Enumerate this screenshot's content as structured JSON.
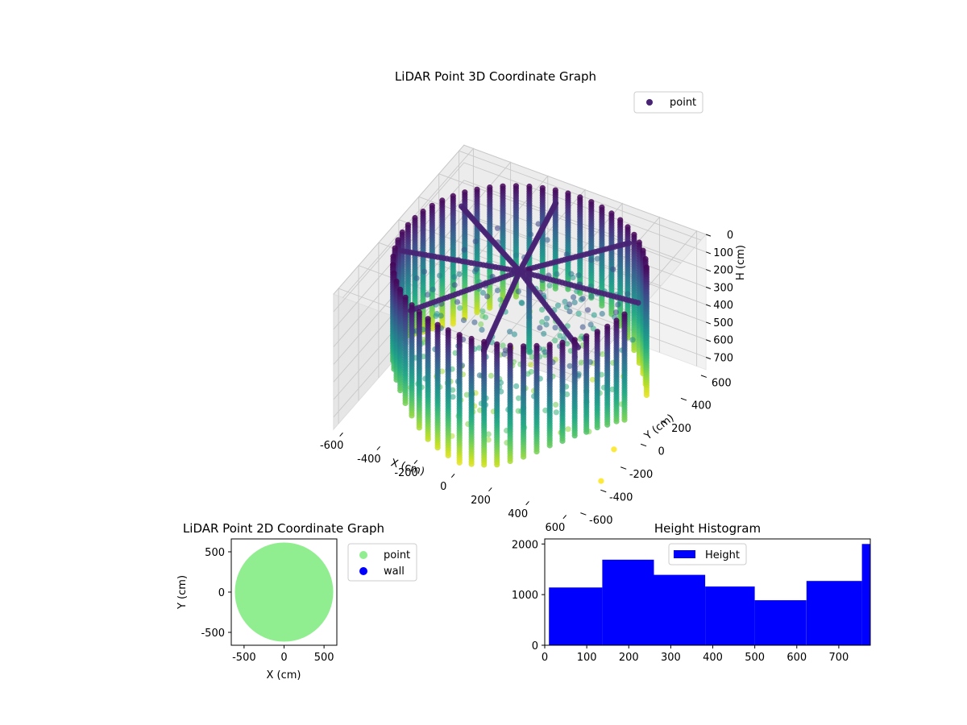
{
  "chart_data": [
    {
      "type": "scatter",
      "projection": "3d",
      "title": "LiDAR Point 3D Coordinate Graph",
      "xlabel": "X (cm)",
      "ylabel": "Y (cm)",
      "zlabel": "H (cm)",
      "xticks": [
        -600,
        -400,
        -200,
        0,
        200,
        400,
        600
      ],
      "yticks": [
        -600,
        -400,
        -200,
        0,
        200,
        400,
        600
      ],
      "zticks": [
        0,
        100,
        200,
        300,
        400,
        500,
        600,
        700
      ],
      "xlim": [
        -650,
        650
      ],
      "ylim": [
        -650,
        650
      ],
      "zlim": [
        0,
        770
      ],
      "zinverted": true,
      "colormap": "viridis",
      "grid": true,
      "legend": {
        "position": "top-right",
        "entries": [
          {
            "label": "point",
            "color": "#472c7a"
          }
        ]
      },
      "points_description": "cylindrical wall of radius ~600 cm spanning heights 0-770 cm, with an interior structure around the center",
      "wall_radius": 600,
      "n_columns": 60,
      "outliers": [
        {
          "x": 560,
          "y": -100,
          "h": 770
        },
        {
          "x": 620,
          "y": -340,
          "h": 770
        }
      ]
    },
    {
      "type": "scatter",
      "title": "LiDAR Point 2D Coordinate Graph",
      "xlabel": "X (cm)",
      "ylabel": "Y (cm)",
      "xticks": [
        -500,
        0,
        500
      ],
      "yticks": [
        -500,
        0,
        500
      ],
      "xlim": [
        -660,
        660
      ],
      "ylim": [
        -660,
        660
      ],
      "series": [
        {
          "name": "point",
          "color": "#90ee90",
          "shape": "filled disc",
          "radius": 615
        },
        {
          "name": "wall",
          "color": "#0000ff",
          "points": []
        }
      ],
      "legend": {
        "position": "outside-right"
      }
    },
    {
      "type": "bar",
      "title": "Height Histogram",
      "xticks": [
        0,
        100,
        200,
        300,
        400,
        500,
        600,
        700
      ],
      "yticks": [
        0,
        1000,
        2000
      ],
      "xlim": [
        0,
        775
      ],
      "ylim": [
        0,
        2100
      ],
      "color": "#0000ff",
      "bins": [
        {
          "x0": 10,
          "x1": 137,
          "count": 1140
        },
        {
          "x0": 137,
          "x1": 260,
          "count": 1690
        },
        {
          "x0": 260,
          "x1": 382,
          "count": 1390
        },
        {
          "x0": 382,
          "x1": 500,
          "count": 1160
        },
        {
          "x0": 500,
          "x1": 623,
          "count": 890
        },
        {
          "x0": 623,
          "x1": 755,
          "count": 1270
        },
        {
          "x0": 755,
          "x1": 775,
          "count": 2000
        }
      ],
      "legend": {
        "position": "top-center",
        "entries": [
          {
            "label": "Height",
            "color": "#0000ff"
          }
        ]
      }
    }
  ]
}
